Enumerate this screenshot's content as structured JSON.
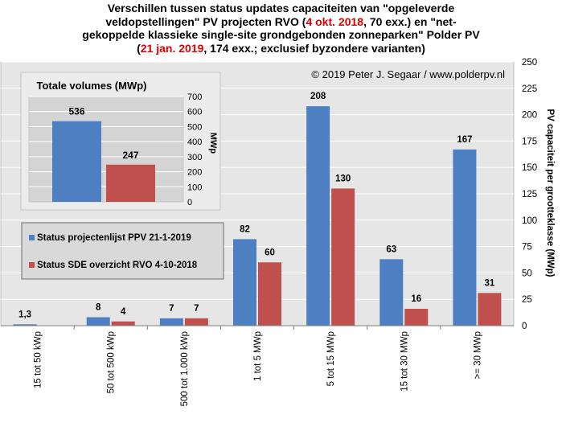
{
  "title": {
    "line1": "Verschillen tussen status updates capaciteiten van \"opgeleverde",
    "line2": "veldopstellingen\" PV projecten RVO (",
    "line2_red": "4 okt. 2018",
    "line2_end": ", 70 exx.) en \"net-",
    "line3": "gekoppelde klassieke single-site grondgebonden zonneparken\" Polder PV",
    "line4_start": "(",
    "line4_red": "21 jan. 2019",
    "line4_end": ", 174 exx.; exclusief byzondere varianten)"
  },
  "copyright": "© 2019 Peter J. Segaar / www.polderpv.nl",
  "colors": {
    "blue": "#4f7fc3",
    "red": "#c0504d",
    "title_red": "#e00000",
    "plot_bg": "#e6e6e6",
    "inset_bg": "#d4d4d4",
    "legend_bg": "#d9d9d9"
  },
  "chart_data": [
    {
      "type": "bar",
      "title": "",
      "xlabel": "",
      "ylabel": "PV capaciteit per grootteklasse (MWp)",
      "ylim": [
        0,
        250
      ],
      "yticks": [
        0,
        25,
        50,
        75,
        100,
        125,
        150,
        175,
        200,
        225,
        250
      ],
      "categories": [
        "15 tot 50 kWp",
        "50 tot 500 kWp",
        "500 tot 1.000 kWp",
        "1 tot 5 MWp",
        "5 tot 15 MWp",
        "15 tot 30 MWp",
        ">= 30 MWp"
      ],
      "series": [
        {
          "name": "Status projectenlijst PPV 21-1-2019",
          "color": "#4f7fc3",
          "values": [
            1.3,
            8,
            7,
            82,
            208,
            63,
            167
          ],
          "labels": [
            "1,3",
            "8",
            "7",
            "82",
            "208",
            "63",
            "167"
          ]
        },
        {
          "name": "Status SDE overzicht RVO 4-10-2018",
          "color": "#c0504d",
          "values": [
            0,
            4,
            7,
            60,
            130,
            16,
            31
          ],
          "labels": [
            "",
            "4",
            "7",
            "60",
            "130",
            "16",
            "31"
          ]
        }
      ],
      "legend_position": "left-middle",
      "grid": true
    },
    {
      "type": "bar",
      "title": "Totale volumes (MWp)",
      "ylabel": "MWp",
      "ylim": [
        0,
        700
      ],
      "yticks": [
        0,
        100,
        200,
        300,
        400,
        500,
        600,
        700
      ],
      "series": [
        {
          "name": "Status projectenlijst PPV 21-1-2019",
          "color": "#4f7fc3",
          "values": [
            536
          ],
          "labels": [
            "536"
          ]
        },
        {
          "name": "Status SDE overzicht RVO 4-10-2018",
          "color": "#c0504d",
          "values": [
            247
          ],
          "labels": [
            "247"
          ]
        }
      ],
      "grid": true
    }
  ]
}
